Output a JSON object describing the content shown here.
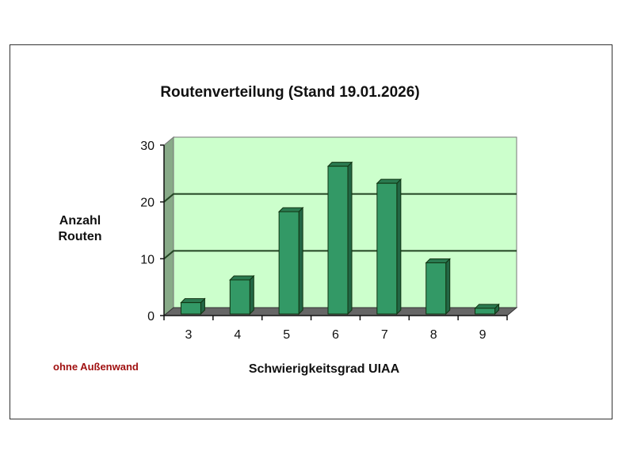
{
  "chart_data": {
    "type": "bar",
    "title": "Routenverteilung (Stand 19.01.2026)",
    "xlabel": "Schwierigkeitsgrad UIAA",
    "ylabel_lines": [
      "Anzahl",
      "Routen"
    ],
    "annotation": "ohne Außenwand",
    "categories": [
      "3",
      "4",
      "5",
      "6",
      "7",
      "8",
      "9"
    ],
    "values": [
      2,
      6,
      18,
      26,
      23,
      9,
      1
    ],
    "ylim": [
      0,
      30
    ],
    "yticks": [
      "0",
      "10",
      "20",
      "30"
    ],
    "grid": true,
    "style": "3d-column",
    "colors": {
      "bar": "#339966",
      "wall": "#ccffcc",
      "floor": "#666666",
      "side_wall": "#88aa88",
      "annotation": "#a01010"
    }
  }
}
